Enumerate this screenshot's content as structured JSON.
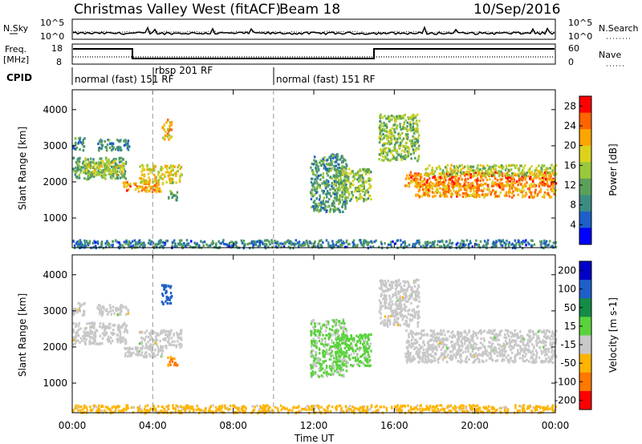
{
  "header": {
    "station": "Christmas Valley West (fitACF)",
    "beam": "Beam 18",
    "date": "10/Sep/2016"
  },
  "strip_noise": {
    "left_label": "N.Sky",
    "right_label": "N.Search",
    "left_ticks": [
      "10^5",
      "10^0"
    ],
    "right_ticks": [
      "10^5",
      "10^0"
    ]
  },
  "strip_freq": {
    "left_label_1": "Freq.",
    "left_label_2": "[MHz]",
    "right_label": "Nave",
    "left_ticks": [
      "18",
      "8"
    ],
    "right_ticks": [
      "60",
      "0"
    ]
  },
  "cpid": {
    "label": "CPID",
    "segments": [
      {
        "start_h": 0.0,
        "text": "normal (fast) 151 RF",
        "row": 1
      },
      {
        "start_h": 4.0,
        "text": "rbsp 201 RF",
        "row": 0
      },
      {
        "start_h": 10.0,
        "text": "normal (fast) 151 RF",
        "row": 1
      }
    ]
  },
  "chart_data": [
    {
      "type": "heatmap",
      "name": "power",
      "ylabel": "Slant Range [km]",
      "xlabel": "",
      "x_ticks": [
        "00:00",
        "04:00",
        "08:00",
        "12:00",
        "16:00",
        "20:00",
        "00:00"
      ],
      "x_range_hours": [
        0,
        24
      ],
      "y_ticks": [
        1000,
        2000,
        3000,
        4000
      ],
      "y_range_km": [
        180,
        4550
      ],
      "colorbar": {
        "label": "Power [dB]",
        "ticks": [
          "4",
          "8",
          "12",
          "16",
          "20",
          "24",
          "28"
        ],
        "range": [
          0,
          30
        ],
        "colors": [
          "#0000ff",
          "#1e5fc8",
          "#3c8c82",
          "#5aa05a",
          "#9ac83c",
          "#dcd21e",
          "#ffa500",
          "#ff6400",
          "#ff0000"
        ]
      },
      "echo_regions": [
        {
          "t0": 0.0,
          "t1": 2.7,
          "r0": 2100,
          "r1": 2700,
          "level": 12
        },
        {
          "t0": 0.0,
          "t1": 0.6,
          "r0": 2900,
          "r1": 3250,
          "level": 10
        },
        {
          "t0": 0.5,
          "t1": 2.5,
          "r0": 2200,
          "r1": 2600,
          "level": 16
        },
        {
          "t0": 1.2,
          "t1": 2.8,
          "r0": 2900,
          "r1": 3200,
          "level": 9
        },
        {
          "t0": 2.5,
          "t1": 4.5,
          "r0": 1750,
          "r1": 2050,
          "level": 22
        },
        {
          "t0": 3.3,
          "t1": 5.4,
          "r0": 2000,
          "r1": 2500,
          "level": 18
        },
        {
          "t0": 4.4,
          "t1": 4.9,
          "r0": 3200,
          "r1": 3750,
          "level": 20
        },
        {
          "t0": 4.7,
          "t1": 5.2,
          "r0": 1500,
          "r1": 1800,
          "level": 12
        },
        {
          "t0": 11.8,
          "t1": 13.6,
          "r0": 1200,
          "r1": 2800,
          "level": 10
        },
        {
          "t0": 13.0,
          "t1": 14.8,
          "r0": 1500,
          "r1": 2400,
          "level": 14
        },
        {
          "t0": 15.2,
          "t1": 17.2,
          "r0": 2600,
          "r1": 3900,
          "level": 14
        },
        {
          "t0": 16.5,
          "t1": 24.0,
          "r0": 1900,
          "r1": 2300,
          "level": 24
        },
        {
          "t0": 17.0,
          "t1": 24.0,
          "r0": 1600,
          "r1": 2000,
          "level": 22
        },
        {
          "t0": 17.5,
          "t1": 24.0,
          "r0": 2200,
          "r1": 2500,
          "level": 16
        },
        {
          "t0": 0.0,
          "t1": 24.0,
          "r0": 200,
          "r1": 420,
          "level": 8
        }
      ]
    },
    {
      "type": "heatmap",
      "name": "velocity",
      "ylabel": "Slant Range [km]",
      "xlabel": "Time UT",
      "x_ticks": [
        "00:00",
        "04:00",
        "08:00",
        "12:00",
        "16:00",
        "20:00",
        "00:00"
      ],
      "x_range_hours": [
        0,
        24
      ],
      "y_ticks": [
        1000,
        2000,
        3000,
        4000
      ],
      "y_range_km": [
        180,
        4550
      ],
      "colorbar": {
        "label": "Velocity [m s-1]",
        "ticks": [
          "200",
          "100",
          "50",
          "15",
          "-15",
          "-50",
          "-100",
          "-200"
        ],
        "colors": [
          "#0000c8",
          "#1e5fc8",
          "#148c46",
          "#5ad23c",
          "#c8c8c8",
          "#ffb400",
          "#ff7800",
          "#ff0000"
        ]
      },
      "echo_regions": [
        {
          "t0": 0.0,
          "t1": 2.7,
          "r0": 2100,
          "r1": 2700,
          "level": 0
        },
        {
          "t0": 0.0,
          "t1": 0.6,
          "r0": 2900,
          "r1": 3250,
          "level": 0
        },
        {
          "t0": 1.2,
          "t1": 2.8,
          "r0": 2900,
          "r1": 3200,
          "level": 0
        },
        {
          "t0": 2.5,
          "t1": 4.5,
          "r0": 1750,
          "r1": 2050,
          "level": 0
        },
        {
          "t0": 3.3,
          "t1": 5.4,
          "r0": 2000,
          "r1": 2500,
          "level": 0
        },
        {
          "t0": 4.4,
          "t1": 4.9,
          "r0": 3200,
          "r1": 3750,
          "level": 150
        },
        {
          "t0": 4.7,
          "t1": 5.2,
          "r0": 1500,
          "r1": 1800,
          "level": -60
        },
        {
          "t0": 11.8,
          "t1": 13.6,
          "r0": 1200,
          "r1": 2800,
          "level": 20
        },
        {
          "t0": 13.0,
          "t1": 14.8,
          "r0": 1500,
          "r1": 2400,
          "level": 30
        },
        {
          "t0": 15.2,
          "t1": 17.2,
          "r0": 2600,
          "r1": 3900,
          "level": 0
        },
        {
          "t0": 16.5,
          "t1": 24.0,
          "r0": 1600,
          "r1": 2500,
          "level": 0
        },
        {
          "t0": 0.0,
          "t1": 24.0,
          "r0": 200,
          "r1": 420,
          "level": -30
        }
      ]
    }
  ]
}
